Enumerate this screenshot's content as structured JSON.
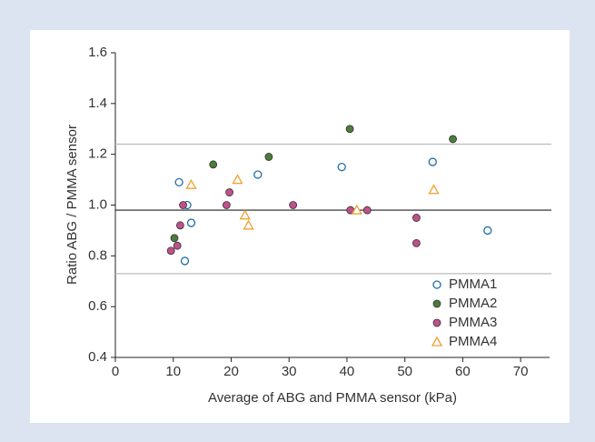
{
  "chart_data": {
    "type": "scatter",
    "x_label": "Average of ABG and PMMA sensor (kPa)",
    "y_label": "Ratio ABG / PMMA sensor",
    "xlim": [
      0,
      75
    ],
    "xticks": [
      0,
      10,
      20,
      30,
      40,
      50,
      60,
      70
    ],
    "ylim": [
      0.4,
      1.6
    ],
    "yticks": [
      {
        "value": 0.4,
        "label": "0.4"
      },
      {
        "value": 0.6,
        "label": "0.6"
      },
      {
        "value": 0.8,
        "label": "0.8"
      },
      {
        "value": 1.0,
        "label": "1.0"
      },
      {
        "value": 1.2,
        "label": "1.2"
      },
      {
        "value": 1.4,
        "label": "1.4"
      },
      {
        "value": 1.6,
        "label": "1.6"
      }
    ],
    "reference_lines": [
      {
        "value": 0.98,
        "color": "#222222"
      },
      {
        "value": 1.24,
        "color": "#bbbbbb"
      },
      {
        "value": 0.73,
        "color": "#bbbbbb"
      }
    ],
    "legend": "bottom-right",
    "series": [
      {
        "name": "PMMA1",
        "color": "#1f6fa8",
        "marker": "open-circle",
        "x": [
          12.4,
          13.1,
          12.0,
          24.6,
          39.1,
          54.8,
          64.3,
          11.0
        ],
        "values": [
          1.0,
          0.93,
          0.78,
          1.12,
          1.15,
          1.17,
          0.9,
          1.09
        ]
      },
      {
        "name": "PMMA2",
        "color": "#4a7d3a",
        "marker": "circle",
        "x": [
          10.2,
          16.9,
          26.5,
          40.5,
          58.3
        ],
        "values": [
          0.87,
          1.16,
          1.19,
          1.3,
          1.26
        ]
      },
      {
        "name": "PMMA3",
        "color": "#c0508a",
        "marker": "circle",
        "x": [
          9.6,
          10.7,
          11.2,
          11.7,
          19.2,
          19.7,
          30.7,
          40.6,
          43.5,
          52.0,
          52.0
        ],
        "values": [
          0.82,
          0.84,
          0.92,
          1.0,
          1.0,
          1.05,
          1.0,
          0.98,
          0.98,
          0.95,
          0.85
        ]
      },
      {
        "name": "PMMA4",
        "color": "#f0a030",
        "marker": "open-triangle",
        "x": [
          13.1,
          21.1,
          22.4,
          23.0,
          41.7,
          55.0
        ],
        "values": [
          1.08,
          1.1,
          0.96,
          0.92,
          0.98,
          1.06
        ]
      }
    ]
  }
}
